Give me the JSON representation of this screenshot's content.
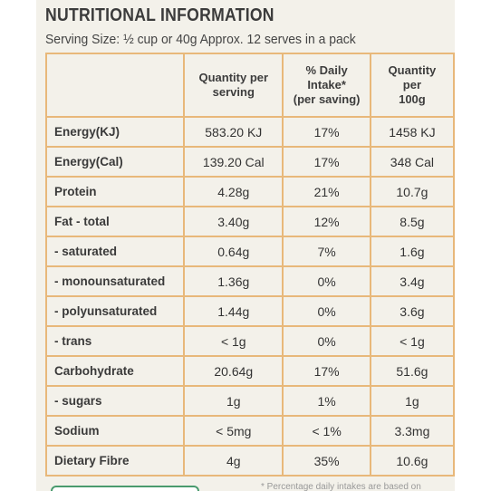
{
  "header": {
    "title": "NUTRITIONAL INFORMATION",
    "serving": "Serving Size: ½ cup or 40g   Approx. 12 serves in a pack"
  },
  "table": {
    "headers": [
      "",
      "Quantity per serving",
      "% Daily Intake* (per saving)",
      "Quantity per 100g"
    ],
    "rows": [
      {
        "name": "Energy(KJ)",
        "per_serving": "583.20 KJ",
        "daily": "17%",
        "per_100g": "1458 KJ"
      },
      {
        "name": "Energy(Cal)",
        "per_serving": "139.20 Cal",
        "daily": "17%",
        "per_100g": "348 Cal"
      },
      {
        "name": "Protein",
        "per_serving": "4.28g",
        "daily": "21%",
        "per_100g": "10.7g"
      },
      {
        "name": "Fat - total",
        "per_serving": "3.40g",
        "daily": "12%",
        "per_100g": "8.5g"
      },
      {
        "name": "- saturated",
        "per_serving": "0.64g",
        "daily": "7%",
        "per_100g": "1.6g"
      },
      {
        "name": "- monounsaturated",
        "per_serving": "1.36g",
        "daily": "0%",
        "per_100g": "3.4g"
      },
      {
        "name": "- polyunsaturated",
        "per_serving": "1.44g",
        "daily": "0%",
        "per_100g": "3.6g"
      },
      {
        "name": "- trans",
        "per_serving": "< 1g",
        "daily": "0%",
        "per_100g": "< 1g"
      },
      {
        "name": "Carbohydrate",
        "per_serving": "20.64g",
        "daily": "17%",
        "per_100g": "51.6g"
      },
      {
        "name": "- sugars",
        "per_serving": "1g",
        "daily": "1%",
        "per_100g": "1g"
      },
      {
        "name": "Sodium",
        "per_serving": "< 5mg",
        "daily": "< 1%",
        "per_100g": "3.3mg"
      },
      {
        "name": "Dietary Fibre",
        "per_serving": "4g",
        "daily": "35%",
        "per_100g": "10.6g"
      }
    ]
  },
  "footnote": "* Percentage daily intakes are based on"
}
